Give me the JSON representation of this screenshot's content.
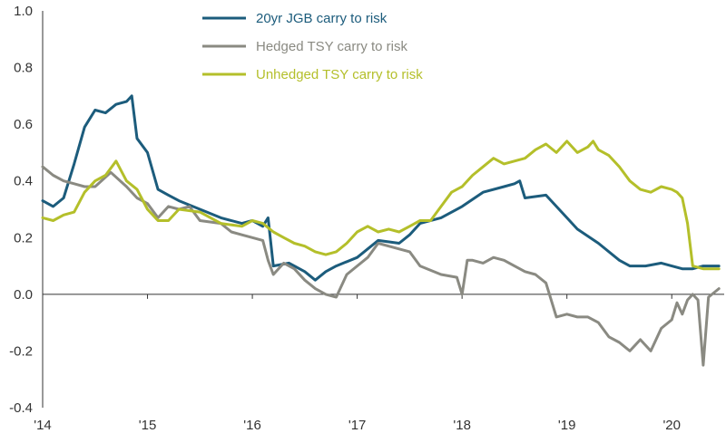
{
  "chart_data": {
    "type": "line",
    "title": "",
    "xlabel": "",
    "ylabel": "",
    "xlim": [
      2014.0,
      2020.5
    ],
    "ylim": [
      -0.4,
      1.0
    ],
    "xticks": [
      {
        "value": 2014,
        "label": "'14"
      },
      {
        "value": 2015,
        "label": "'15"
      },
      {
        "value": 2016,
        "label": "'16"
      },
      {
        "value": 2017,
        "label": "'17"
      },
      {
        "value": 2018,
        "label": "'18"
      },
      {
        "value": 2019,
        "label": "'19"
      },
      {
        "value": 2020,
        "label": "'20"
      }
    ],
    "yticks": [
      {
        "value": 1.0,
        "label": "1.0"
      },
      {
        "value": 0.8,
        "label": "0.8"
      },
      {
        "value": 0.6,
        "label": "0.6"
      },
      {
        "value": 0.4,
        "label": "0.4"
      },
      {
        "value": 0.2,
        "label": "0.2"
      },
      {
        "value": 0.0,
        "label": "0.0"
      },
      {
        "value": -0.2,
        "label": "-0.2"
      },
      {
        "value": -0.4,
        "label": "-0.4"
      }
    ],
    "grid": false,
    "legend_position": "top-center",
    "series": [
      {
        "name": "20yr JGB carry to risk",
        "color": "#1c5c7c",
        "x": [
          2014.0,
          2014.1,
          2014.2,
          2014.3,
          2014.4,
          2014.5,
          2014.6,
          2014.7,
          2014.8,
          2014.85,
          2014.9,
          2015.0,
          2015.1,
          2015.2,
          2015.3,
          2015.5,
          2015.7,
          2015.9,
          2016.0,
          2016.1,
          2016.15,
          2016.2,
          2016.35,
          2016.5,
          2016.6,
          2016.7,
          2016.8,
          2017.0,
          2017.2,
          2017.4,
          2017.5,
          2017.6,
          2017.8,
          2018.0,
          2018.2,
          2018.4,
          2018.5,
          2018.55,
          2018.6,
          2018.8,
          2019.0,
          2019.1,
          2019.3,
          2019.5,
          2019.6,
          2019.75,
          2019.9,
          2020.0,
          2020.1,
          2020.2,
          2020.3,
          2020.35,
          2020.45
        ],
        "y": [
          0.33,
          0.31,
          0.34,
          0.46,
          0.59,
          0.65,
          0.64,
          0.67,
          0.68,
          0.7,
          0.55,
          0.5,
          0.37,
          0.35,
          0.33,
          0.3,
          0.27,
          0.25,
          0.26,
          0.24,
          0.27,
          0.1,
          0.11,
          0.08,
          0.05,
          0.08,
          0.1,
          0.13,
          0.19,
          0.18,
          0.21,
          0.25,
          0.27,
          0.31,
          0.36,
          0.38,
          0.39,
          0.4,
          0.34,
          0.35,
          0.27,
          0.23,
          0.18,
          0.12,
          0.1,
          0.1,
          0.11,
          0.1,
          0.09,
          0.09,
          0.1,
          0.1,
          0.1
        ]
      },
      {
        "name": "Hedged TSY carry to risk",
        "color": "#8a8a82",
        "x": [
          2014.0,
          2014.1,
          2014.2,
          2014.3,
          2014.4,
          2014.5,
          2014.65,
          2014.8,
          2014.9,
          2015.0,
          2015.1,
          2015.2,
          2015.3,
          2015.4,
          2015.5,
          2015.7,
          2015.8,
          2015.9,
          2016.0,
          2016.1,
          2016.15,
          2016.2,
          2016.3,
          2016.4,
          2016.5,
          2016.6,
          2016.7,
          2016.8,
          2016.9,
          2017.0,
          2017.1,
          2017.2,
          2017.3,
          2017.4,
          2017.5,
          2017.6,
          2017.8,
          2017.95,
          2018.0,
          2018.05,
          2018.1,
          2018.2,
          2018.3,
          2018.4,
          2018.5,
          2018.6,
          2018.7,
          2018.8,
          2018.9,
          2019.0,
          2019.1,
          2019.2,
          2019.3,
          2019.4,
          2019.5,
          2019.6,
          2019.7,
          2019.8,
          2019.9,
          2020.0,
          2020.05,
          2020.1,
          2020.15,
          2020.2,
          2020.25,
          2020.3,
          2020.35,
          2020.45
        ],
        "y": [
          0.45,
          0.42,
          0.4,
          0.39,
          0.38,
          0.38,
          0.43,
          0.38,
          0.34,
          0.32,
          0.27,
          0.31,
          0.3,
          0.31,
          0.26,
          0.25,
          0.22,
          0.21,
          0.2,
          0.19,
          0.12,
          0.07,
          0.11,
          0.09,
          0.05,
          0.02,
          0.0,
          -0.01,
          0.07,
          0.1,
          0.13,
          0.18,
          0.17,
          0.16,
          0.15,
          0.1,
          0.07,
          0.06,
          0.0,
          0.12,
          0.12,
          0.11,
          0.13,
          0.12,
          0.1,
          0.08,
          0.07,
          0.04,
          -0.08,
          -0.07,
          -0.08,
          -0.08,
          -0.1,
          -0.15,
          -0.17,
          -0.2,
          -0.16,
          -0.2,
          -0.12,
          -0.09,
          -0.03,
          -0.07,
          -0.02,
          0.0,
          -0.02,
          -0.25,
          -0.01,
          0.02
        ]
      },
      {
        "name": "Unhedged TSY carry to risk",
        "color": "#b4bf2a",
        "x": [
          2014.0,
          2014.1,
          2014.2,
          2014.3,
          2014.4,
          2014.5,
          2014.6,
          2014.7,
          2014.8,
          2014.9,
          2015.0,
          2015.1,
          2015.2,
          2015.3,
          2015.5,
          2015.7,
          2015.9,
          2016.0,
          2016.1,
          2016.2,
          2016.3,
          2016.4,
          2016.5,
          2016.6,
          2016.7,
          2016.8,
          2016.9,
          2017.0,
          2017.1,
          2017.2,
          2017.3,
          2017.4,
          2017.5,
          2017.6,
          2017.7,
          2017.8,
          2017.9,
          2018.0,
          2018.1,
          2018.2,
          2018.3,
          2018.4,
          2018.5,
          2018.6,
          2018.7,
          2018.8,
          2018.9,
          2019.0,
          2019.1,
          2019.2,
          2019.25,
          2019.3,
          2019.4,
          2019.5,
          2019.6,
          2019.7,
          2019.8,
          2019.9,
          2020.0,
          2020.05,
          2020.1,
          2020.15,
          2020.2,
          2020.3,
          2020.4,
          2020.45
        ],
        "y": [
          0.27,
          0.26,
          0.28,
          0.29,
          0.36,
          0.4,
          0.42,
          0.47,
          0.4,
          0.37,
          0.3,
          0.26,
          0.26,
          0.3,
          0.29,
          0.25,
          0.24,
          0.26,
          0.25,
          0.22,
          0.2,
          0.18,
          0.17,
          0.15,
          0.14,
          0.15,
          0.18,
          0.22,
          0.24,
          0.22,
          0.23,
          0.22,
          0.24,
          0.26,
          0.26,
          0.31,
          0.36,
          0.38,
          0.42,
          0.45,
          0.48,
          0.46,
          0.47,
          0.48,
          0.51,
          0.53,
          0.5,
          0.54,
          0.5,
          0.52,
          0.54,
          0.51,
          0.49,
          0.45,
          0.4,
          0.37,
          0.36,
          0.38,
          0.37,
          0.36,
          0.34,
          0.25,
          0.1,
          0.09,
          0.09,
          0.09
        ]
      }
    ]
  }
}
